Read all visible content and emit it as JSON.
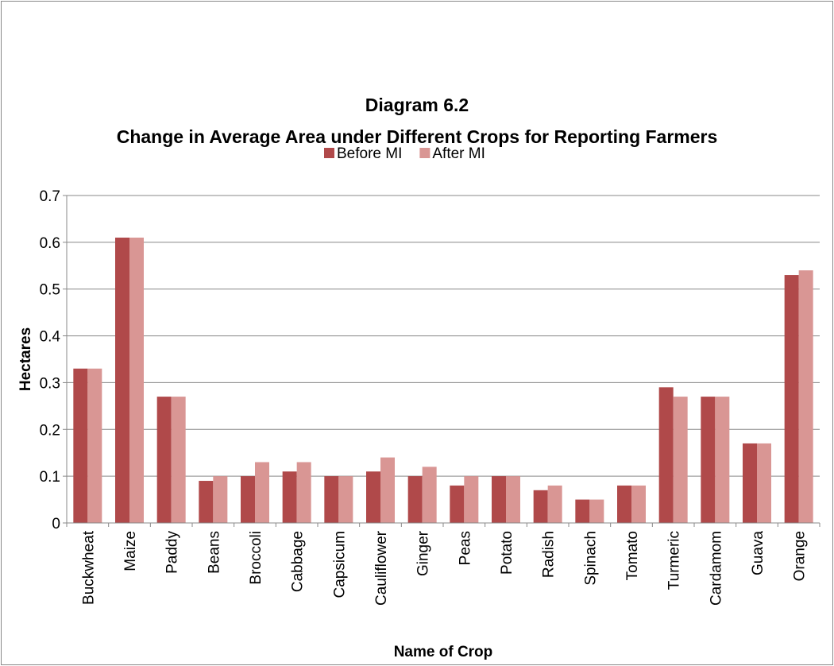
{
  "chart_data": {
    "type": "bar",
    "title": "Diagram 6.2",
    "subtitle": "Change in Average Area under Different Crops for Reporting Farmers",
    "x_label": "Name of Crop",
    "y_label": "Hectares",
    "categories": [
      "Buckwheat",
      "Maize",
      "Paddy",
      "Beans",
      "Broccoli",
      "Cabbage",
      "Capsicum",
      "Cauliflower",
      "Ginger",
      "Peas",
      "Potato",
      "Radish",
      "Spinach",
      "Tomato",
      "Turmeric",
      "Cardamom",
      "Guava",
      "Orange"
    ],
    "series": [
      {
        "name": "Before MI",
        "color": "#b0494a",
        "values": [
          0.33,
          0.61,
          0.27,
          0.09,
          0.1,
          0.11,
          0.1,
          0.11,
          0.1,
          0.08,
          0.1,
          0.07,
          0.05,
          0.08,
          0.29,
          0.27,
          0.17,
          0.53
        ]
      },
      {
        "name": "After MI",
        "color": "#d99694",
        "values": [
          0.33,
          0.61,
          0.27,
          0.1,
          0.13,
          0.13,
          0.1,
          0.14,
          0.12,
          0.1,
          0.1,
          0.08,
          0.05,
          0.08,
          0.27,
          0.27,
          0.17,
          0.54
        ]
      }
    ],
    "ylim": [
      0,
      0.7
    ],
    "yticks": [
      0,
      0.1,
      0.2,
      0.3,
      0.4,
      0.5,
      0.6,
      0.7
    ],
    "grid": true,
    "legend": "top"
  }
}
